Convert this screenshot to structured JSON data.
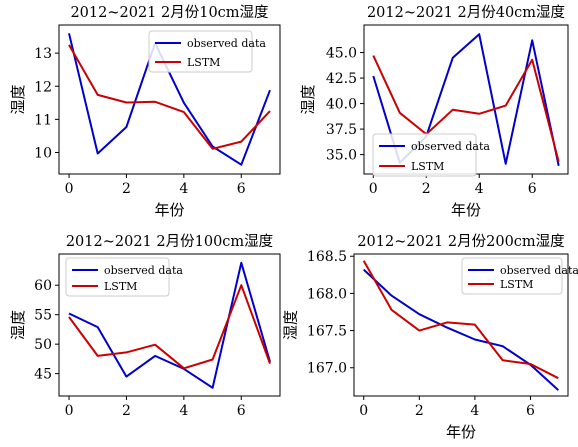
{
  "chart_data": [
    {
      "type": "line",
      "title": "2012~2021 2月份10cm湿度",
      "xlabel": "年份",
      "ylabel": "湿度",
      "x": [
        0,
        1,
        2,
        3,
        4,
        5,
        6,
        7
      ],
      "xticks": [
        0,
        2,
        4,
        6
      ],
      "xlim": [
        -0.35,
        7.35
      ],
      "ylim": [
        9.35,
        13.85
      ],
      "yticks": [
        "10",
        "11",
        "12",
        "13"
      ],
      "legend_position": "upper right",
      "series": [
        {
          "name": "observed data",
          "color": "#0000cc",
          "values": [
            13.6,
            9.97,
            10.77,
            13.3,
            11.5,
            10.18,
            9.63,
            11.88
          ]
        },
        {
          "name": "LSTM",
          "color": "#cc0000",
          "values": [
            13.25,
            11.74,
            11.51,
            11.53,
            11.22,
            10.11,
            10.33,
            11.25
          ]
        }
      ]
    },
    {
      "type": "line",
      "title": "2012~2021 2月份40cm湿度",
      "xlabel": "年份",
      "ylabel": "湿度",
      "x": [
        0,
        1,
        2,
        3,
        4,
        5,
        6,
        7
      ],
      "xticks": [
        0,
        2,
        4,
        6
      ],
      "xlim": [
        -0.35,
        7.35
      ],
      "ylim": [
        33.1,
        47.7
      ],
      "yticks": [
        "35.0",
        "37.5",
        "40.0",
        "42.5",
        "45.0"
      ],
      "legend_position": "lower left",
      "series": [
        {
          "name": "observed data",
          "color": "#0000cc",
          "values": [
            42.7,
            34.2,
            36.8,
            44.5,
            46.8,
            34.1,
            46.2,
            33.9
          ]
        },
        {
          "name": "LSTM",
          "color": "#cc0000",
          "values": [
            44.7,
            39.1,
            37.0,
            39.4,
            39.0,
            39.8,
            44.3,
            34.3
          ]
        }
      ]
    },
    {
      "type": "line",
      "title": "2012~2021 2月份100cm湿度",
      "xlabel": "",
      "ylabel": "湿度",
      "x": [
        0,
        1,
        2,
        3,
        4,
        5,
        6,
        7
      ],
      "xticks": [
        0,
        2,
        4,
        6
      ],
      "xlim": [
        -0.35,
        7.35
      ],
      "ylim": [
        41.2,
        65.3
      ],
      "yticks": [
        "45",
        "50",
        "55",
        "60"
      ],
      "legend_position": "upper left",
      "series": [
        {
          "name": "observed data",
          "color": "#0000cc",
          "values": [
            55.2,
            52.9,
            44.5,
            48.0,
            45.8,
            42.6,
            63.8,
            47.0
          ]
        },
        {
          "name": "LSTM",
          "color": "#cc0000",
          "values": [
            54.6,
            48.0,
            48.6,
            49.9,
            45.9,
            47.4,
            60.0,
            46.7
          ]
        }
      ]
    },
    {
      "type": "line",
      "title": "2012~2021 2月份200cm湿度",
      "xlabel": "年份",
      "ylabel": "湿度",
      "x": [
        0,
        1,
        2,
        3,
        4,
        5,
        6,
        7
      ],
      "xticks": [
        0,
        2,
        4,
        6
      ],
      "xlim": [
        -0.35,
        7.35
      ],
      "ylim": [
        166.62,
        168.53
      ],
      "yticks": [
        "167.0",
        "167.5",
        "168.0",
        "168.5"
      ],
      "legend_position": "upper right",
      "series": [
        {
          "name": "observed data",
          "color": "#0000cc",
          "values": [
            168.32,
            167.97,
            167.72,
            167.54,
            167.38,
            167.29,
            167.04,
            166.7
          ]
        },
        {
          "name": "LSTM",
          "color": "#cc0000",
          "values": [
            168.44,
            167.78,
            167.5,
            167.61,
            167.58,
            167.1,
            167.05,
            166.86
          ]
        }
      ]
    }
  ]
}
